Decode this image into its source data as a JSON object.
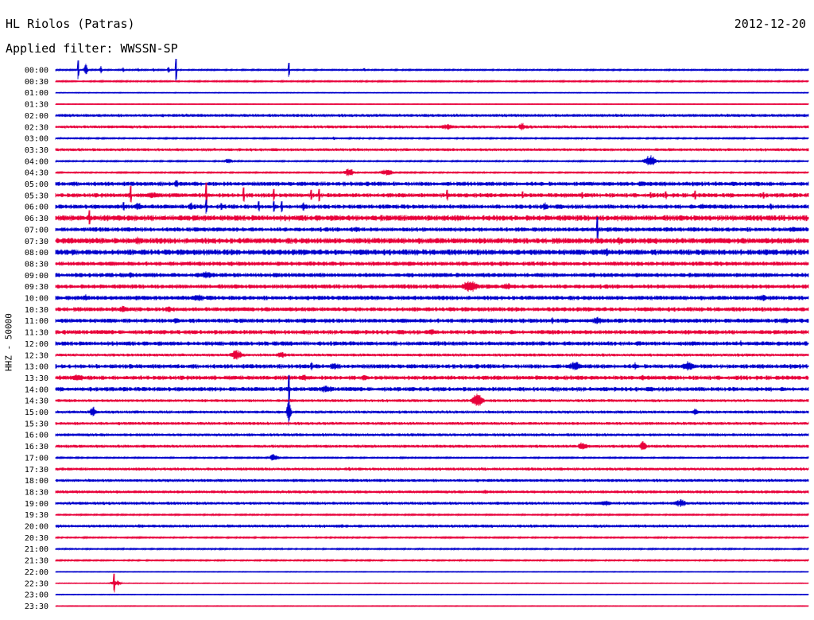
{
  "header": {
    "station": "HL Riolos (Patras)",
    "date": "2012-12-20",
    "filter": "Applied filter: WWSSN-SP"
  },
  "chart_data": {
    "type": "line",
    "ylabel": "HHZ - 50000",
    "xlabel": "",
    "colors": [
      "#0000cc",
      "#e8003a"
    ],
    "rows": [
      "00:00",
      "00:30",
      "01:00",
      "01:30",
      "02:00",
      "02:30",
      "03:00",
      "03:30",
      "04:00",
      "04:30",
      "05:00",
      "05:30",
      "06:00",
      "06:30",
      "07:00",
      "07:30",
      "08:00",
      "08:30",
      "09:00",
      "09:30",
      "10:00",
      "10:30",
      "11:00",
      "11:30",
      "12:00",
      "12:30",
      "13:00",
      "13:30",
      "14:00",
      "14:30",
      "15:00",
      "15:30",
      "16:00",
      "16:30",
      "17:00",
      "17:30",
      "18:00",
      "18:30",
      "19:00",
      "19:30",
      "20:00",
      "20:30",
      "21:00",
      "21:30",
      "22:00",
      "22:30",
      "23:00",
      "23:30"
    ],
    "noise": [
      1,
      1,
      0.5,
      0.5,
      2,
      2,
      1,
      2,
      1,
      1,
      3,
      3,
      3,
      4,
      3,
      4,
      4,
      3,
      3,
      3,
      3,
      3,
      3,
      3,
      3,
      2,
      3,
      3,
      3,
      2,
      2,
      2,
      2,
      2,
      1,
      2,
      2,
      2,
      2,
      1,
      2,
      1,
      1,
      1,
      0.5,
      0.5,
      0.5,
      0.5
    ],
    "events": [
      [
        [
          0.03,
          12,
          1.0
        ],
        [
          0.04,
          8,
          3
        ],
        [
          0.06,
          6,
          2
        ],
        [
          0.09,
          4,
          2
        ],
        [
          0.11,
          3,
          2
        ],
        [
          0.13,
          3,
          2
        ],
        [
          0.15,
          4,
          2
        ],
        [
          0.16,
          14,
          1
        ],
        [
          0.31,
          9,
          1
        ],
        [
          0.41,
          3,
          2
        ]
      ],
      [],
      [],
      [],
      [],
      [
        [
          0.52,
          4,
          12
        ],
        [
          0.62,
          6,
          6
        ]
      ],
      [
        [
          0.37,
          2,
          3
        ]
      ],
      [
        [
          0.11,
          2,
          4
        ]
      ],
      [
        [
          0.23,
          4,
          6
        ],
        [
          0.79,
          8,
          10
        ]
      ],
      [
        [
          0.39,
          6,
          8
        ],
        [
          0.44,
          5,
          10
        ]
      ],
      [
        [
          0.16,
          6,
          4
        ],
        [
          0.78,
          4,
          12
        ]
      ],
      [
        [
          0.1,
          12,
          1
        ],
        [
          0.13,
          4,
          20
        ],
        [
          0.2,
          16,
          1
        ],
        [
          0.25,
          10,
          1
        ],
        [
          0.29,
          8,
          1
        ],
        [
          0.34,
          7,
          1
        ],
        [
          0.35,
          8,
          1
        ],
        [
          0.52,
          7,
          1
        ],
        [
          0.62,
          5,
          1
        ],
        [
          0.7,
          4,
          1
        ],
        [
          0.79,
          4,
          1
        ],
        [
          0.81,
          5,
          1
        ],
        [
          0.85,
          6,
          1
        ],
        [
          0.94,
          4,
          1
        ]
      ],
      [
        [
          0.09,
          6,
          1
        ],
        [
          0.11,
          6,
          6
        ],
        [
          0.18,
          6,
          3
        ],
        [
          0.2,
          9,
          1
        ],
        [
          0.22,
          6,
          2
        ],
        [
          0.27,
          7,
          1
        ],
        [
          0.29,
          7,
          1
        ],
        [
          0.3,
          7,
          1
        ],
        [
          0.33,
          6,
          4
        ],
        [
          0.65,
          6,
          5
        ],
        [
          0.86,
          5,
          6
        ],
        [
          0.95,
          4,
          1
        ]
      ],
      [
        [
          0.045,
          10,
          1
        ],
        [
          0.37,
          3,
          3
        ]
      ],
      [
        [
          0.4,
          5,
          6
        ],
        [
          0.72,
          16,
          1
        ],
        [
          0.98,
          6,
          4
        ]
      ],
      [
        [
          0.11,
          6,
          6
        ],
        [
          0.75,
          5,
          10
        ],
        [
          0.82,
          3,
          6
        ]
      ],
      [
        [
          0.02,
          3,
          6
        ],
        [
          0.73,
          6,
          10
        ]
      ],
      [
        [
          0.47,
          4,
          4
        ]
      ],
      [
        [
          0.1,
          4,
          6
        ],
        [
          0.2,
          5,
          12
        ]
      ],
      [
        [
          0.55,
          8,
          14
        ],
        [
          0.6,
          5,
          10
        ]
      ],
      [
        [
          0.04,
          5,
          4
        ],
        [
          0.19,
          5,
          10
        ],
        [
          0.94,
          5,
          6
        ]
      ],
      [
        [
          0.09,
          5,
          8
        ],
        [
          0.15,
          5,
          6
        ]
      ],
      [
        [
          0.16,
          5,
          4
        ],
        [
          0.66,
          5,
          3
        ],
        [
          0.72,
          6,
          8
        ],
        [
          0.97,
          5,
          4
        ]
      ],
      [
        [
          0.0,
          3,
          4
        ],
        [
          0.5,
          4,
          10
        ],
        [
          0.57,
          3,
          8
        ]
      ],
      [
        [
          0.91,
          6,
          2
        ]
      ],
      [
        [
          0.24,
          7,
          10
        ],
        [
          0.3,
          4,
          10
        ]
      ],
      [
        [
          0.34,
          7,
          2
        ],
        [
          0.37,
          5,
          10
        ],
        [
          0.69,
          7,
          10
        ],
        [
          0.84,
          7,
          10
        ],
        [
          0.77,
          6,
          2
        ]
      ],
      [
        [
          0.03,
          5,
          10
        ],
        [
          0.33,
          5,
          6
        ],
        [
          0.41,
          4,
          6
        ],
        [
          0.64,
          4,
          4
        ],
        [
          0.78,
          4,
          6
        ]
      ],
      [
        [
          0.31,
          18,
          1
        ],
        [
          0.36,
          5,
          14
        ]
      ],
      [
        [
          0.56,
          9,
          10
        ]
      ],
      [
        [
          0.05,
          7,
          6
        ],
        [
          0.31,
          24,
          3
        ],
        [
          0.85,
          5,
          4
        ]
      ],
      [],
      [],
      [
        [
          0.15,
          2,
          4
        ],
        [
          0.7,
          6,
          8
        ],
        [
          0.78,
          7,
          6
        ]
      ],
      [
        [
          0.29,
          5,
          8
        ]
      ],
      [
        [
          0.39,
          3,
          2
        ]
      ],
      [],
      [
        [
          0.57,
          3,
          4
        ]
      ],
      [
        [
          0.73,
          4,
          10
        ],
        [
          0.83,
          6,
          10
        ]
      ],
      [],
      [
        [
          0.11,
          3,
          3
        ],
        [
          0.38,
          3,
          6
        ]
      ],
      [],
      [],
      [
        [
          0.58,
          0,
          2
        ]
      ],
      [],
      [
        [
          0.078,
          12,
          1
        ],
        [
          0.08,
          4,
          8
        ]
      ],
      [],
      []
    ]
  }
}
